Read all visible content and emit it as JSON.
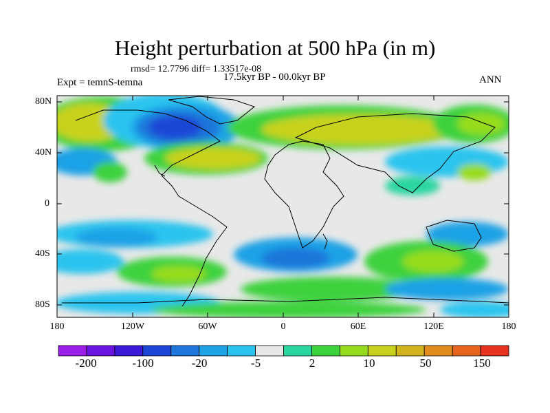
{
  "header": {
    "title": "Height perturbation at 500 hPa (in m)",
    "stats": "rmsd= 12.7796  diff= 1.33517e-08",
    "period": "17.5kyr BP - 00.0kyr BP",
    "experiment": "Expt = temnS-temna",
    "season": "ANN"
  },
  "axes": {
    "y_ticks": [
      "80N",
      "40N",
      "0",
      "40S",
      "80S"
    ],
    "x_ticks": [
      "180",
      "120W",
      "60W",
      "0",
      "60E",
      "120E",
      "180"
    ]
  },
  "colorbar": {
    "colors": [
      "#9a1ee6",
      "#6a14e0",
      "#3a1ad6",
      "#1e46d6",
      "#1e76da",
      "#1ea2e6",
      "#2ac4ee",
      "#e8e8e8",
      "#2ad6a0",
      "#3cd23c",
      "#96dc1e",
      "#c8d21e",
      "#d2b41e",
      "#e08c1e",
      "#e6641e",
      "#e6321e"
    ],
    "labels": [
      "-200",
      "-100",
      "-20",
      "-5",
      "2",
      "10",
      "50",
      "150"
    ]
  }
}
